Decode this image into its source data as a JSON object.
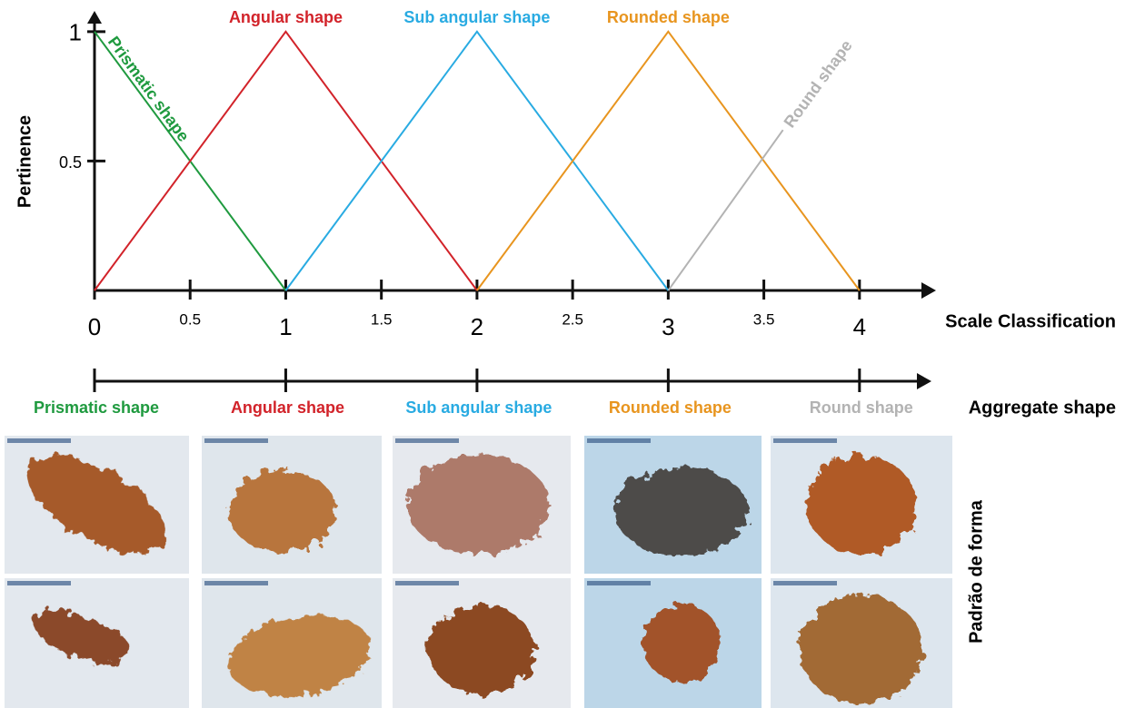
{
  "chart_data": {
    "type": "line",
    "x_label": "Scale Classification",
    "y_label": "Pertinence",
    "xlim": [
      0,
      4.4
    ],
    "ylim": [
      0,
      1.08
    ],
    "xticks": [
      0,
      0.5,
      1,
      1.5,
      2,
      2.5,
      3,
      3.5,
      4
    ],
    "yticks": [
      0.5,
      1
    ],
    "series": [
      {
        "name": "Prismatic shape",
        "color": "#1f9a3f",
        "x": [
          0,
          1
        ],
        "values": [
          1,
          0
        ]
      },
      {
        "name": "Angular shape",
        "color": "#d2232a",
        "x": [
          0,
          1,
          2
        ],
        "values": [
          0,
          1,
          0
        ]
      },
      {
        "name": "Sub angular shape",
        "color": "#29abe2",
        "x": [
          1,
          2,
          3
        ],
        "values": [
          0,
          1,
          0
        ]
      },
      {
        "name": "Rounded shape",
        "color": "#e8951f",
        "x": [
          2,
          3,
          4
        ],
        "values": [
          0,
          1,
          0
        ]
      },
      {
        "name": "Round shape",
        "color": "#b3b3b3",
        "x": [
          3,
          3.6
        ],
        "values": [
          0,
          0.62
        ]
      }
    ]
  },
  "shape_scale": {
    "title": "Aggregate shape",
    "categories": [
      "Prismatic shape",
      "Angular shape",
      "Sub angular shape",
      "Rounded shape",
      "Round shape"
    ],
    "colors": [
      "#1f9a3f",
      "#d2232a",
      "#29abe2",
      "#e8951f",
      "#b3b3b3"
    ]
  },
  "photos": {
    "label": "Padrão de forma"
  }
}
